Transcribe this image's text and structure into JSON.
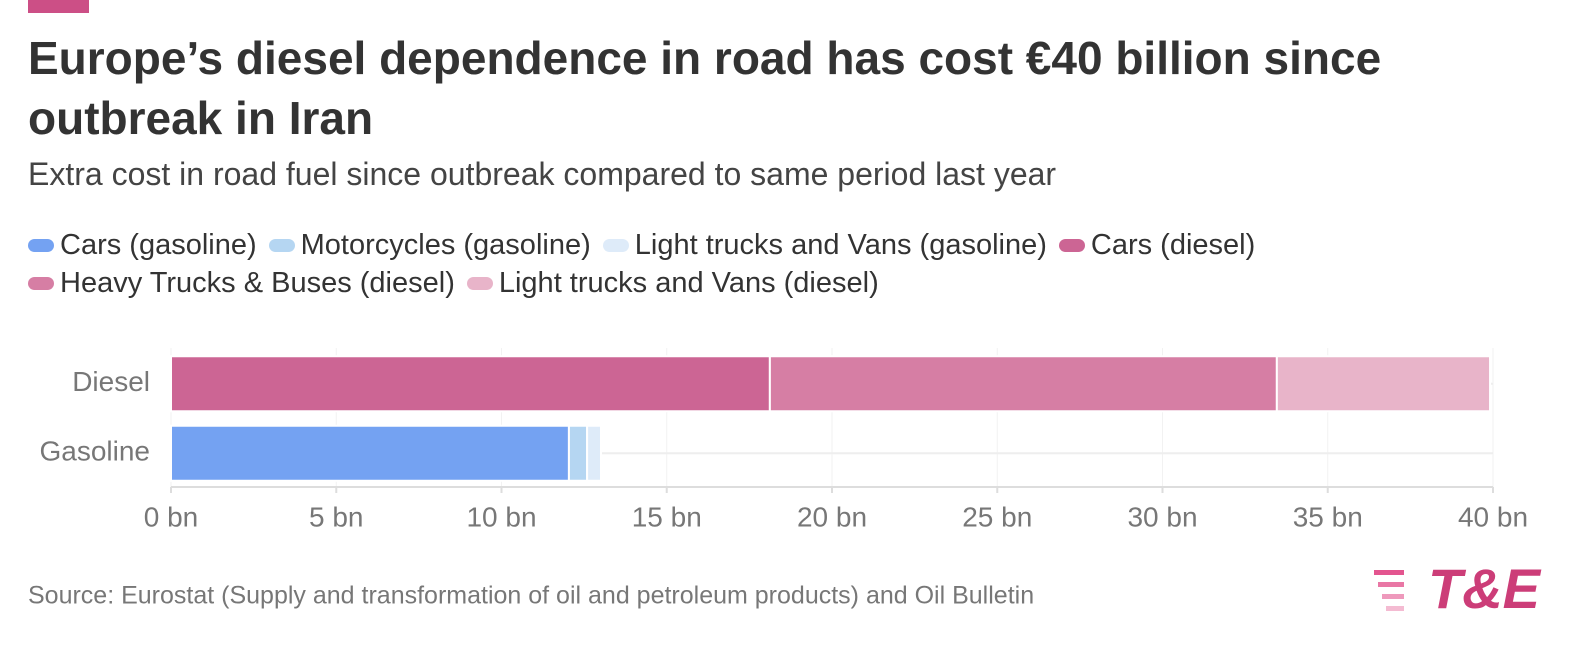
{
  "chart_data": {
    "type": "stacked-bar-horizontal",
    "title": "Europe’s diesel dependence in road has cost €40 billion since outbreak in Iran",
    "subtitle": "Extra cost in road fuel since outbreak compared to same period last year",
    "categories": [
      "Diesel",
      "Gasoline"
    ],
    "series": [
      {
        "name": "Cars (gasoline)",
        "color": "#74a2f2",
        "values": [
          null,
          12.04
        ]
      },
      {
        "name": "Motorcycles (gasoline)",
        "color": "#b5d6f2",
        "values": [
          null,
          0.55
        ]
      },
      {
        "name": "Light trucks and Vans (gasoline)",
        "color": "#deebf9",
        "values": [
          null,
          0.42
        ]
      },
      {
        "name": "Cars (diesel)",
        "color": "#cc6594",
        "values": [
          18.12,
          null
        ]
      },
      {
        "name": "Heavy Trucks & Buses (diesel)",
        "color": "#d67ea4",
        "values": [
          15.34,
          null
        ]
      },
      {
        "name": "Light trucks and Vans (diesel)",
        "color": "#e8b4c9",
        "values": [
          6.45,
          null
        ]
      }
    ],
    "xlim": [
      0,
      40
    ],
    "xticks": [
      {
        "value": 0,
        "label": "0 bn"
      },
      {
        "value": 5,
        "label": "5 bn"
      },
      {
        "value": 10,
        "label": "10 bn"
      },
      {
        "value": 15,
        "label": "15 bn"
      },
      {
        "value": 20,
        "label": "20 bn"
      },
      {
        "value": 25,
        "label": "25 bn"
      },
      {
        "value": 30,
        "label": "30 bn"
      },
      {
        "value": 35,
        "label": "35 bn"
      },
      {
        "value": 40,
        "label": "40 bn"
      }
    ],
    "grid": true,
    "legend": "top-left",
    "source": "Source: Eurostat (Supply and transformation of oil and petroleum products) and Oil Bulletin",
    "logo": "T&E"
  }
}
